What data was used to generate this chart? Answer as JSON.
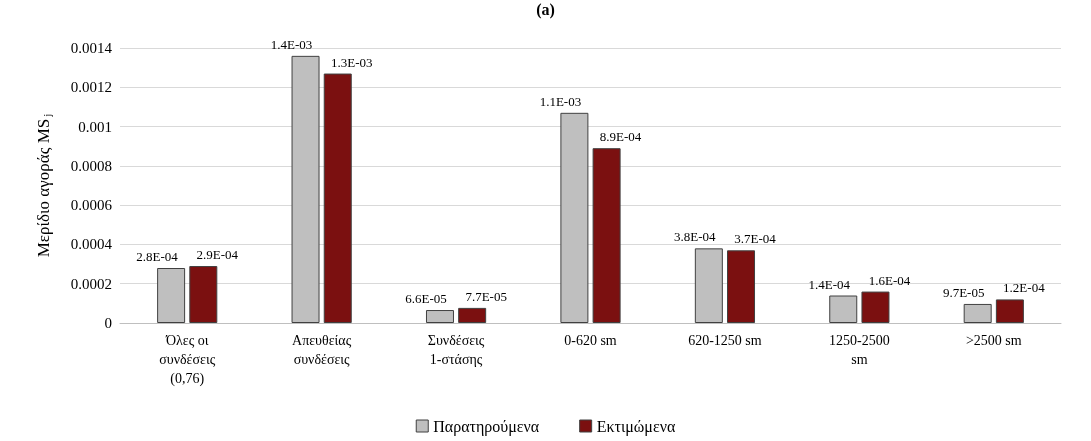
{
  "chart_data": {
    "type": "bar",
    "title": "(a)",
    "ylabel": "Μερίδιο αγοράς MS$_{j}$",
    "categories": [
      "Όλες οι συνδέσεις (0,76)",
      "Απευθείας συνδέσεις",
      "Συνδέσεις 1-στάσης",
      "0-620 sm",
      "620-1250 sm",
      "1250-2500 sm",
      ">2500 sm"
    ],
    "series": [
      {
        "name": "Παρατηρούμενα",
        "color": "#bfbfbf",
        "values": [
          0.00028,
          0.00136,
          6.6e-05,
          0.00107,
          0.00038,
          0.00014,
          9.7e-05
        ],
        "value_labels": [
          "2.8E-04",
          "1.4E-03",
          "6.6E-05",
          "1.1E-03",
          "3.8E-04",
          "1.4E-04",
          "9.7E-05"
        ]
      },
      {
        "name": "Εκτιμώμενα",
        "color": "#7b1010",
        "values": [
          0.00029,
          0.00127,
          7.7e-05,
          0.00089,
          0.00037,
          0.00016,
          0.00012
        ],
        "value_labels": [
          "2.9E-04",
          "1.3E-03",
          "7.7E-05",
          "8.9E-04",
          "3.7E-04",
          "1.6E-04",
          "1.2E-04"
        ]
      }
    ],
    "ylim": [
      0,
      0.0014
    ],
    "yticks": [
      0,
      0.0002,
      0.0004,
      0.0006,
      0.0008,
      0.001,
      0.0012,
      0.0014
    ],
    "grid": "y",
    "legend": "bottom"
  }
}
